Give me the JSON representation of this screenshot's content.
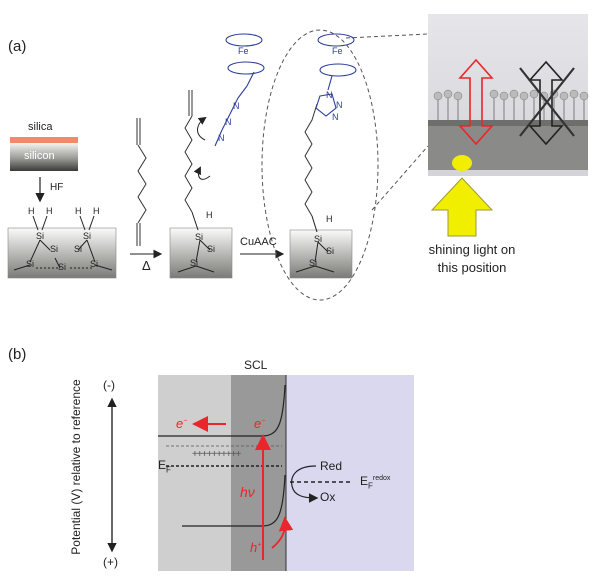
{
  "panel_a": {
    "label": "(a)",
    "silica_label": "silica",
    "silicon_label": "silicon",
    "hf_label": "HF",
    "delta_label": "Δ",
    "cuaac_label": "CuAAC",
    "fe_label": "Fe",
    "h_label": "H",
    "si_label": "Si",
    "n_label": "N",
    "shining_line1": "shining light on",
    "shining_line2": "this position"
  },
  "panel_b": {
    "label": "(b)",
    "y_axis_label": "Potential (V) relative to reference",
    "minus_label": "(-)",
    "plus_label": "(+)",
    "scl_label": "SCL",
    "e_minus_left": "e",
    "e_minus_right": "e",
    "ef_label": "E",
    "ef_sub": "F",
    "hv_label": "hν",
    "h_plus": "h",
    "red_label": "Red",
    "ox_label": "Ox",
    "ef_redox_label": "E",
    "ef_redox_sub": "F",
    "ef_redox_sup": "redox",
    "plus_row": "++++++++++"
  },
  "colors": {
    "red_arrow": "#e8262b",
    "silica_layer": "#f08a6a",
    "blue_chem": "#2d3f9a",
    "yellow_arrow": "#f1ee00",
    "region_light_gray": "#cfcfcf",
    "region_dark_gray": "#999999",
    "region_lavender": "#d9d8ee"
  }
}
